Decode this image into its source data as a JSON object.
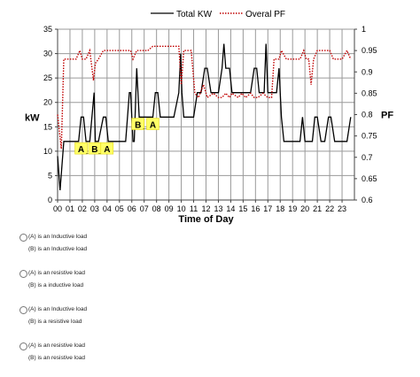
{
  "chart_data": {
    "type": "line",
    "xlabel": "Time of Day",
    "ylabel_left": "kW",
    "ylabel_right": "PF",
    "x_tick_labels": [
      "00",
      "01",
      "02",
      "03",
      "04",
      "05",
      "06",
      "07",
      "08",
      "09",
      "10",
      "11",
      "12",
      "13",
      "14",
      "15",
      "16",
      "17",
      "18",
      "19",
      "20",
      "21",
      "22",
      "23"
    ],
    "xlim": [
      0,
      24
    ],
    "ylim_left": [
      0,
      35
    ],
    "y_ticks_left": [
      0,
      5,
      10,
      15,
      20,
      25,
      30,
      35
    ],
    "ylim_right": [
      0.6,
      1
    ],
    "y_ticks_right": [
      "0.6",
      "0.65",
      "0.7",
      "0.75",
      "0.8",
      "0.85",
      "0.9",
      "0.95",
      "1"
    ],
    "grid": true,
    "legend_position": "top",
    "series": [
      {
        "name": "Total KW",
        "axis": "left",
        "color": "#000000",
        "style": "solid",
        "x": [
          0,
          0.2,
          0.5,
          1,
          1.7,
          1.9,
          2.1,
          2.3,
          2.6,
          2.95,
          3.05,
          3.3,
          3.7,
          3.9,
          4.1,
          4.3,
          4.6,
          5,
          5.5,
          5.8,
          5.9,
          6.1,
          6.2,
          6.4,
          6.6,
          6.8,
          7,
          7.3,
          7.7,
          7.9,
          8.1,
          8.3,
          8.7,
          9,
          9.4,
          9.8,
          9.95,
          10.05,
          10.2,
          10.5,
          11,
          11.3,
          11.6,
          11.9,
          12.1,
          12.4,
          12.7,
          13,
          13.3,
          13.45,
          13.6,
          13.9,
          14.1,
          14.4,
          14.9,
          15.3,
          15.6,
          15.9,
          16.1,
          16.3,
          16.7,
          16.85,
          17,
          17.3,
          17.7,
          17.9,
          18.1,
          18.3,
          18.6,
          19,
          19.3,
          19.6,
          19.8,
          20,
          20.3,
          20.6,
          20.8,
          21,
          21.3,
          21.6,
          21.9,
          22.1,
          22.4,
          22.9,
          23.4,
          23.7
        ],
        "values": [
          9,
          2,
          12,
          12,
          12,
          17,
          17,
          12,
          12,
          22,
          12,
          12,
          17,
          17,
          12,
          12,
          12,
          12,
          12,
          22,
          22,
          12,
          12,
          27,
          17,
          17,
          17,
          17,
          17,
          22,
          22,
          17,
          17,
          17,
          17,
          22,
          30,
          22,
          17,
          17,
          17,
          22,
          22,
          27,
          27,
          22,
          22,
          22,
          27,
          32,
          27,
          27,
          22,
          22,
          22,
          22,
          22,
          27,
          27,
          22,
          22,
          32,
          22,
          22,
          22,
          27,
          17,
          12,
          12,
          12,
          12,
          12,
          17,
          12,
          12,
          12,
          17,
          17,
          12,
          12,
          17,
          17,
          12,
          12,
          12,
          17
        ]
      },
      {
        "name": "Overal PF",
        "axis": "right",
        "color": "#c00000",
        "style": "dotted",
        "x": [
          0,
          0.3,
          0.5,
          1,
          1.5,
          1.8,
          2,
          2.3,
          2.6,
          2.9,
          3.05,
          3.3,
          3.7,
          4,
          4.3,
          4.7,
          5,
          5.5,
          5.9,
          6.1,
          6.4,
          6.7,
          7,
          7.3,
          7.7,
          8,
          8.4,
          8.7,
          9,
          9.4,
          9.8,
          10,
          10.2,
          10.5,
          10.8,
          11.1,
          11.4,
          11.8,
          12.1,
          12.6,
          13,
          13.3,
          13.6,
          13.9,
          14.1,
          14.6,
          14.9,
          15.2,
          15.6,
          15.9,
          16.2,
          16.6,
          17,
          17.3,
          17.5,
          17.7,
          17.9,
          18.1,
          18.5,
          18.9,
          19.3,
          19.6,
          19.9,
          20.1,
          20.3,
          20.5,
          20.7,
          21,
          21.4,
          21.7,
          22,
          22.3,
          22.6,
          23,
          23.4,
          23.7
        ],
        "values": [
          0.8,
          0.72,
          0.93,
          0.93,
          0.93,
          0.95,
          0.93,
          0.93,
          0.95,
          0.88,
          0.92,
          0.93,
          0.95,
          0.95,
          0.95,
          0.95,
          0.95,
          0.95,
          0.95,
          0.93,
          0.95,
          0.95,
          0.95,
          0.95,
          0.96,
          0.96,
          0.96,
          0.96,
          0.96,
          0.96,
          0.96,
          0.87,
          0.95,
          0.95,
          0.95,
          0.85,
          0.84,
          0.87,
          0.84,
          0.85,
          0.84,
          0.84,
          0.85,
          0.84,
          0.85,
          0.84,
          0.85,
          0.84,
          0.85,
          0.84,
          0.84,
          0.85,
          0.84,
          0.84,
          0.93,
          0.93,
          0.93,
          0.95,
          0.93,
          0.93,
          0.93,
          0.93,
          0.95,
          0.93,
          0.93,
          0.87,
          0.93,
          0.95,
          0.95,
          0.95,
          0.95,
          0.93,
          0.93,
          0.93,
          0.95,
          0.93
        ]
      }
    ],
    "annotations": [
      {
        "text": "A",
        "x": 1.9,
        "y": 10.5
      },
      {
        "text": "_",
        "x": 2.5,
        "y": 10.5
      },
      {
        "text": "B",
        "x": 3.0,
        "y": 10.5
      },
      {
        "text": "_",
        "x": 3.5,
        "y": 10.5
      },
      {
        "text": "A",
        "x": 4.0,
        "y": 10.5
      },
      {
        "text": "B",
        "x": 6.5,
        "y": 15.5
      },
      {
        "text": "_",
        "x": 7.1,
        "y": 15.5
      },
      {
        "text": "A",
        "x": 7.7,
        "y": 15.5
      }
    ]
  },
  "options": [
    {
      "line1": "(A) is an Inductive load",
      "line2": "(B) is an Inductive load"
    },
    {
      "line1": "(A) is an resistive load",
      "line2": "(B) is a inductive load"
    },
    {
      "line1": "(A) is an Inductive load",
      "line2": "(B) is a resistive load"
    },
    {
      "line1": "(A) is an resistive load",
      "line2": "(B) is an resistive load"
    }
  ]
}
